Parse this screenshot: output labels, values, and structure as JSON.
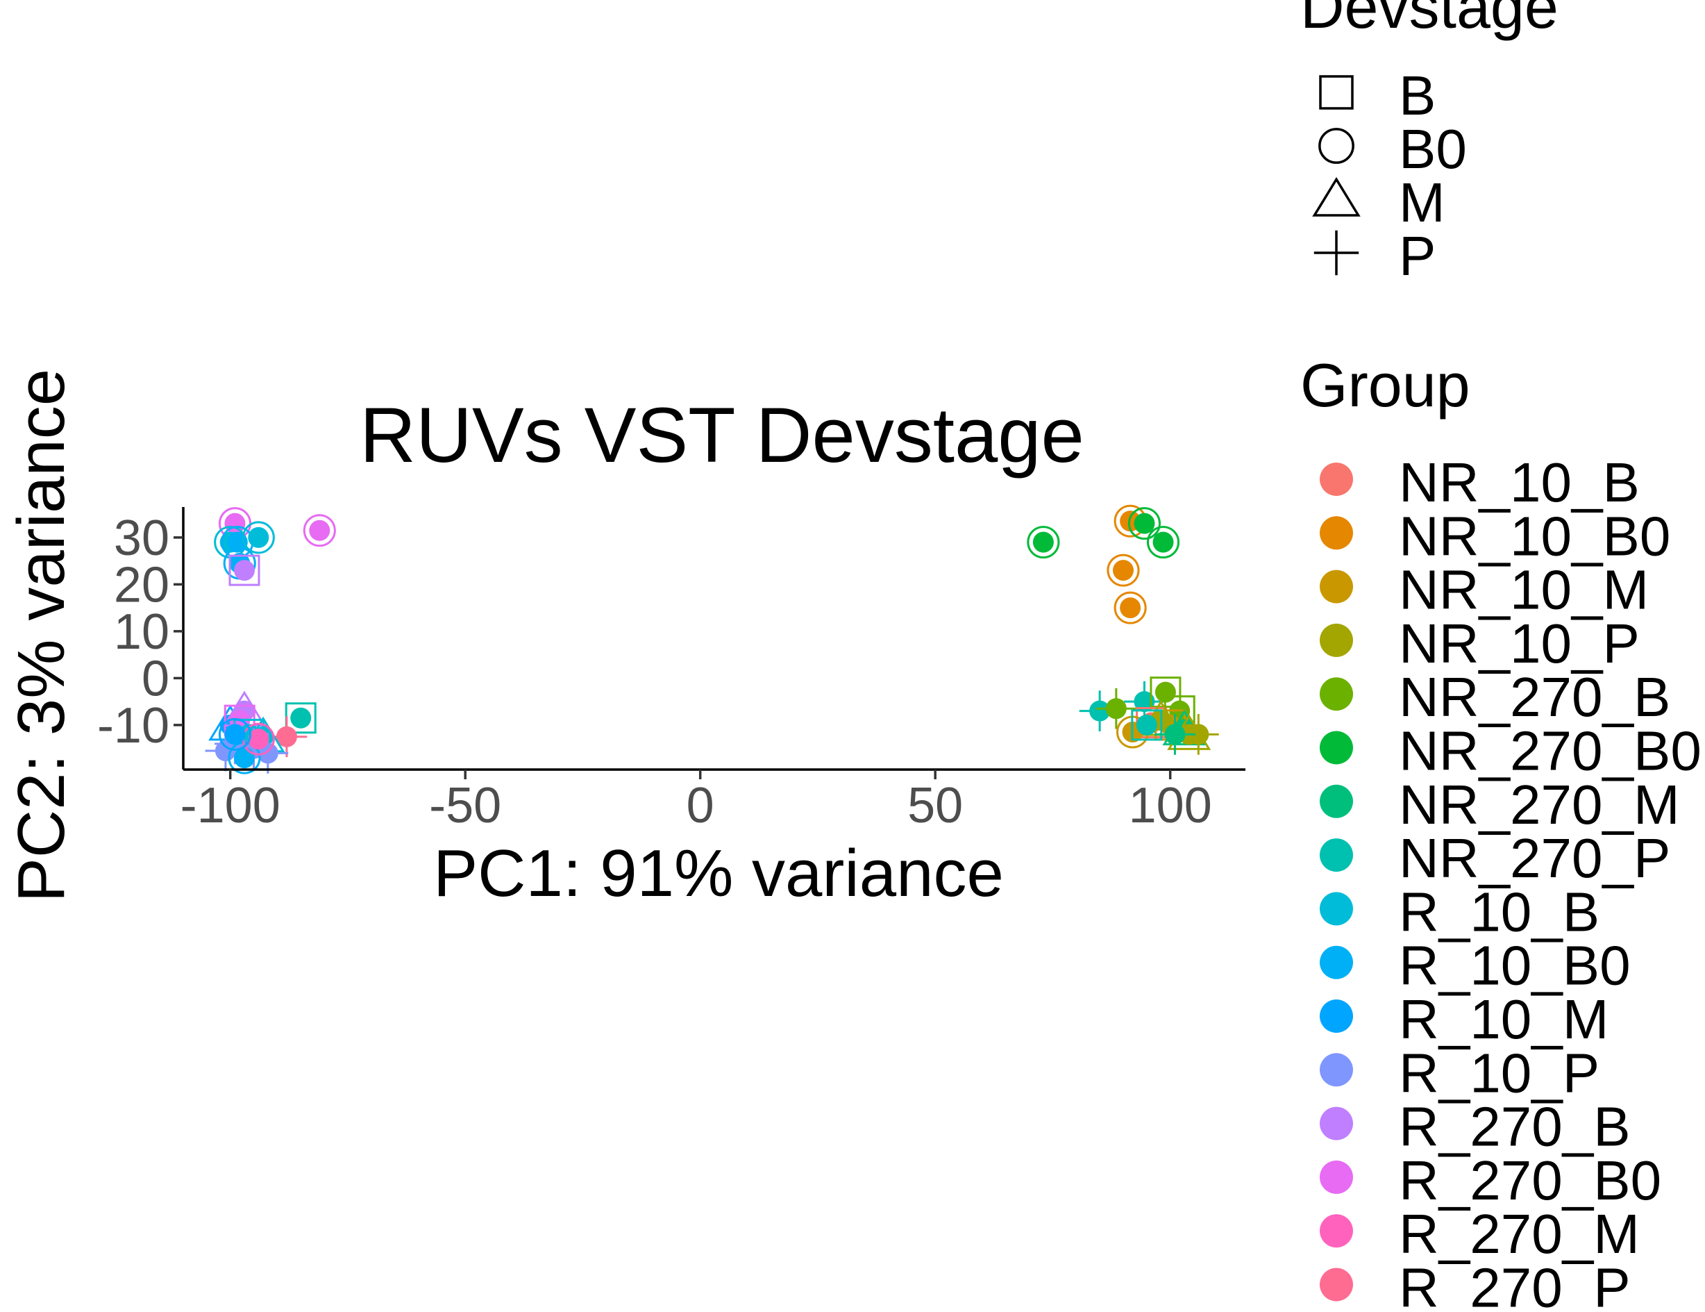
{
  "chart_data": {
    "type": "scatter",
    "title": "RUVs VST Devstage",
    "xlabel": "PC1: 91% variance",
    "ylabel": "PC2: 3% variance",
    "xlim": [
      -110,
      116
    ],
    "ylim": [
      -19.5,
      36.5
    ],
    "xticks": [
      -100,
      -50,
      0,
      50,
      100
    ],
    "yticks": [
      -10,
      0,
      10,
      20,
      30
    ],
    "grid": false,
    "legend_placement": "right",
    "shape_legend": {
      "title": "Devstage",
      "items": [
        {
          "label": "B",
          "shape": "square"
        },
        {
          "label": "B0",
          "shape": "circle"
        },
        {
          "label": "M",
          "shape": "triangle"
        },
        {
          "label": "P",
          "shape": "cross"
        }
      ]
    },
    "color_legend": {
      "title": "Group",
      "items": [
        {
          "label": "NR_10_B",
          "color": "#F8766D"
        },
        {
          "label": "NR_10_B0",
          "color": "#E58700"
        },
        {
          "label": "NR_10_M",
          "color": "#C99800"
        },
        {
          "label": "NR_10_P",
          "color": "#A3A500"
        },
        {
          "label": "NR_270_B",
          "color": "#6BB100"
        },
        {
          "label": "NR_270_B0",
          "color": "#00BA38"
        },
        {
          "label": "NR_270_M",
          "color": "#00BF7D"
        },
        {
          "label": "NR_270_P",
          "color": "#00C0AF"
        },
        {
          "label": "R_10_B",
          "color": "#00BCD8"
        },
        {
          "label": "R_10_B0",
          "color": "#00B0F6"
        },
        {
          "label": "R_10_M",
          "color": "#00A5FF"
        },
        {
          "label": "R_10_P",
          "color": "#7F96FF"
        },
        {
          "label": "R_270_B",
          "color": "#BF7FFF"
        },
        {
          "label": "R_270_B0",
          "color": "#E76BF3"
        },
        {
          "label": "R_270_M",
          "color": "#FF62BC"
        },
        {
          "label": "R_270_P",
          "color": "#FF6C91"
        }
      ]
    },
    "points": [
      {
        "x": -99,
        "y": 33,
        "group": 13,
        "shape": "circle"
      },
      {
        "x": -100,
        "y": 29,
        "group": 8,
        "shape": "circle"
      },
      {
        "x": -98.5,
        "y": 29,
        "group": 9,
        "shape": "circle"
      },
      {
        "x": -94,
        "y": 30,
        "group": 8,
        "shape": "circle"
      },
      {
        "x": -98,
        "y": 24.5,
        "group": 9,
        "shape": "circle"
      },
      {
        "x": -97,
        "y": 23,
        "group": 12,
        "shape": "square"
      },
      {
        "x": -81,
        "y": 31.5,
        "group": 13,
        "shape": "circle"
      },
      {
        "x": -85,
        "y": -8.5,
        "group": 7,
        "shape": "square"
      },
      {
        "x": -88,
        "y": -12.5,
        "group": 15,
        "shape": "cross"
      },
      {
        "x": -100,
        "y": -10,
        "group": 10,
        "shape": "triangle"
      },
      {
        "x": -97,
        "y": -7,
        "group": 12,
        "shape": "triangle"
      },
      {
        "x": -98,
        "y": -9,
        "group": 13,
        "shape": "square"
      },
      {
        "x": -96,
        "y": -12,
        "group": 8,
        "shape": "square"
      },
      {
        "x": -93,
        "y": -12.5,
        "group": 8,
        "shape": "triangle"
      },
      {
        "x": -99,
        "y": -14,
        "group": 11,
        "shape": "cross"
      },
      {
        "x": -95,
        "y": -15,
        "group": 11,
        "shape": "cross"
      },
      {
        "x": -101,
        "y": -15.5,
        "group": 11,
        "shape": "cross"
      },
      {
        "x": -92,
        "y": -16,
        "group": 11,
        "shape": "cross"
      },
      {
        "x": -97,
        "y": -17,
        "group": 9,
        "shape": "circle"
      },
      {
        "x": -94,
        "y": -13,
        "group": 14,
        "shape": "circle"
      },
      {
        "x": -99,
        "y": -12,
        "group": 10,
        "shape": "circle"
      },
      {
        "x": 91.5,
        "y": 33.5,
        "group": 1,
        "shape": "circle"
      },
      {
        "x": 94.5,
        "y": 33,
        "group": 5,
        "shape": "circle"
      },
      {
        "x": 73,
        "y": 29,
        "group": 5,
        "shape": "circle"
      },
      {
        "x": 98.5,
        "y": 29,
        "group": 5,
        "shape": "circle"
      },
      {
        "x": 90,
        "y": 23,
        "group": 1,
        "shape": "circle"
      },
      {
        "x": 91.5,
        "y": 15,
        "group": 1,
        "shape": "circle"
      },
      {
        "x": 85,
        "y": -7,
        "group": 7,
        "shape": "cross"
      },
      {
        "x": 88.5,
        "y": -6.5,
        "group": 4,
        "shape": "cross"
      },
      {
        "x": 94.5,
        "y": -5,
        "group": 7,
        "shape": "cross"
      },
      {
        "x": 99,
        "y": -3,
        "group": 4,
        "shape": "square"
      },
      {
        "x": 96,
        "y": -9.5,
        "group": 0,
        "shape": "square"
      },
      {
        "x": 102,
        "y": -7,
        "group": 4,
        "shape": "square"
      },
      {
        "x": 100,
        "y": -10,
        "group": 2,
        "shape": "square"
      },
      {
        "x": 103,
        "y": -11,
        "group": 6,
        "shape": "triangle"
      },
      {
        "x": 104,
        "y": -12,
        "group": 3,
        "shape": "triangle"
      },
      {
        "x": 98,
        "y": -9,
        "group": 3,
        "shape": "triangle"
      },
      {
        "x": 92,
        "y": -11.5,
        "group": 2,
        "shape": "circle"
      },
      {
        "x": 95,
        "y": -10,
        "group": 7,
        "shape": "square"
      },
      {
        "x": 106,
        "y": -12,
        "group": 3,
        "shape": "cross"
      },
      {
        "x": 101,
        "y": -12,
        "group": 6,
        "shape": "cross"
      }
    ]
  }
}
